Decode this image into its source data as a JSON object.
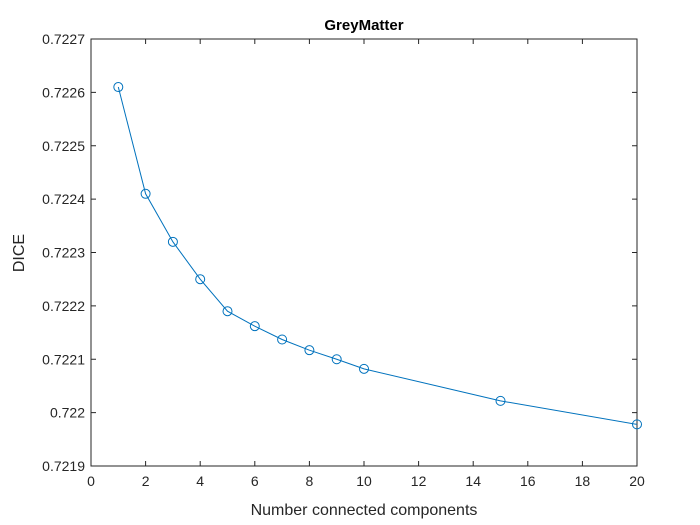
{
  "chart_data": {
    "type": "line",
    "title": "GreyMatter",
    "xlabel": "Number connected components",
    "ylabel": "DICE",
    "xlim": [
      0,
      20
    ],
    "ylim": [
      0.7219,
      0.7227
    ],
    "xticks": [
      0,
      2,
      4,
      6,
      8,
      10,
      12,
      14,
      16,
      18,
      20
    ],
    "xtick_labels": [
      "0",
      "2",
      "4",
      "6",
      "8",
      "10",
      "12",
      "14",
      "16",
      "18",
      "20"
    ],
    "yticks": [
      0.7219,
      0.722,
      0.7221,
      0.7222,
      0.7223,
      0.7224,
      0.7225,
      0.7226,
      0.7227
    ],
    "ytick_labels": [
      "0.7219",
      "0.722",
      "0.7221",
      "0.7222",
      "0.7223",
      "0.7224",
      "0.7225",
      "0.7226",
      "0.7227"
    ],
    "grid": false,
    "marker": "circle",
    "series": [
      {
        "color": "#0072BD",
        "x": [
          1,
          2,
          3,
          4,
          5,
          6,
          7,
          8,
          9,
          10,
          15,
          20
        ],
        "y": [
          0.72261,
          0.72241,
          0.72232,
          0.72225,
          0.72219,
          0.722162,
          0.722137,
          0.722117,
          0.7221,
          0.722082,
          0.722022,
          0.721978
        ]
      }
    ]
  }
}
